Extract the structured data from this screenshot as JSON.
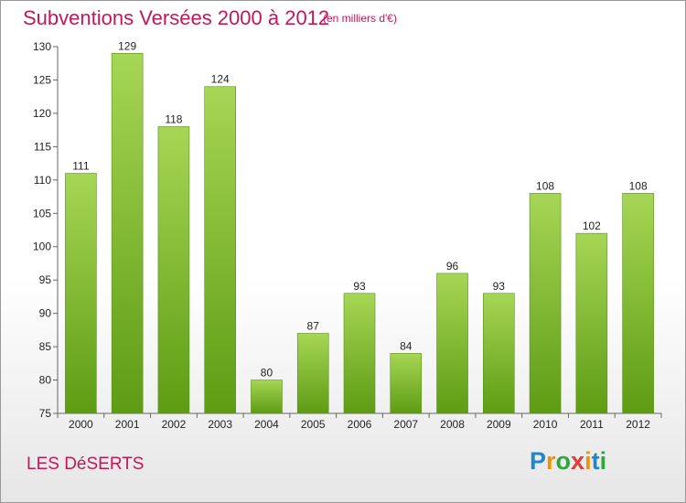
{
  "header": {
    "title": "Subventions Versées 2000 à 2012",
    "unit": "(en milliers d'€)"
  },
  "footer": {
    "commune": "LES DéSERTS",
    "logo": {
      "letters": [
        "P",
        "r",
        "o",
        "x",
        "i",
        "t",
        "i"
      ],
      "colors": [
        "#1e88c8",
        "#f39200",
        "#2ea63a",
        "#e53935",
        "#f39200",
        "#1e88c8",
        "#2ea63a"
      ]
    }
  },
  "colors": {
    "bar_top": "#a6d655",
    "bar_bottom": "#5e9c14",
    "accent": "#c2185b"
  },
  "chart_data": {
    "type": "bar",
    "categories": [
      "2000",
      "2001",
      "2002",
      "2003",
      "2004",
      "2005",
      "2006",
      "2007",
      "2008",
      "2009",
      "2010",
      "2011",
      "2012"
    ],
    "values": [
      111,
      129,
      118,
      124,
      80,
      87,
      93,
      84,
      96,
      93,
      108,
      102,
      108
    ],
    "ylim": [
      75,
      130
    ],
    "yticks": [
      75,
      80,
      85,
      90,
      95,
      100,
      105,
      110,
      115,
      120,
      125,
      130
    ],
    "grid": false,
    "legend": "none"
  }
}
